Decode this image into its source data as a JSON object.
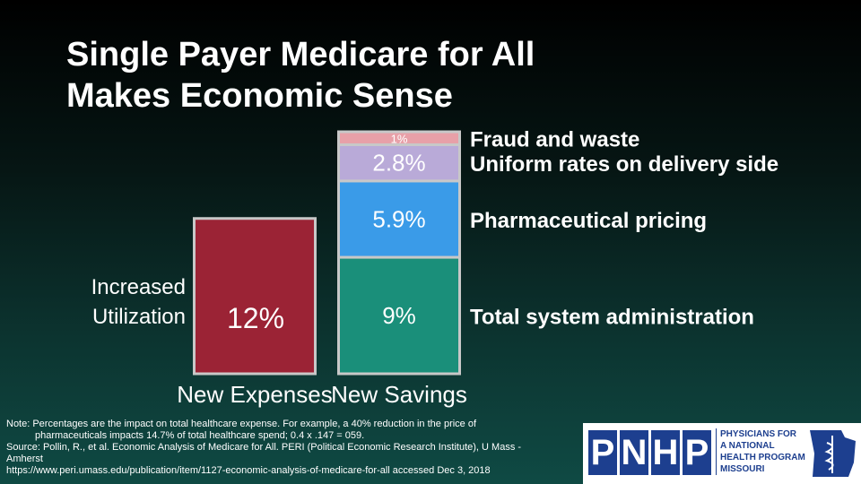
{
  "chart_data": {
    "type": "bar",
    "stacked": true,
    "title": [
      "Single Payer Medicare for All",
      "Makes Economic Sense"
    ],
    "categories": [
      "New Expenses",
      "New Savings"
    ],
    "series": [
      {
        "name": "Increased Utilization",
        "color": "#9b2335",
        "values": [
          12,
          null
        ],
        "value_labels": [
          "12%",
          null
        ]
      },
      {
        "name": "Total system administration",
        "color": "#1a8f7a",
        "values": [
          null,
          9
        ],
        "value_labels": [
          null,
          "9%"
        ]
      },
      {
        "name": "Pharmaceutical pricing",
        "color": "#3a9be8",
        "values": [
          null,
          5.9
        ],
        "value_labels": [
          null,
          "5.9%"
        ]
      },
      {
        "name": "Uniform rates on delivery side",
        "color": "#b9aad8",
        "values": [
          null,
          2.8
        ],
        "value_labels": [
          null,
          "2.8%"
        ]
      },
      {
        "name": "Fraud and waste",
        "color": "#e8a0a8",
        "values": [
          null,
          1
        ],
        "value_labels": [
          null,
          "1%"
        ]
      }
    ]
  },
  "notes": [
    "Note: Percentages are the impact on total healthcare expense. For example, a 40% reduction in the price of",
    "pharmaceuticals impacts 14.7% of total healthcare spend; 0.4 x .147 = 059.",
    "Source: Pollin, R., et al. Economic Analysis of Medicare for All. PERI (Political Economic Research Institute), U Mass -",
    "Amherst",
    "https://www.peri.umass.edu/publication/item/1127-economic-analysis-of-medicare-for-all accessed Dec 3, 2018"
  ],
  "logo": {
    "letters": [
      "P",
      "N",
      "H",
      "P"
    ],
    "lines": [
      "PHYSICIANS FOR",
      "A NATIONAL",
      "HEALTH PROGRAM",
      "MISSOURI"
    ]
  }
}
